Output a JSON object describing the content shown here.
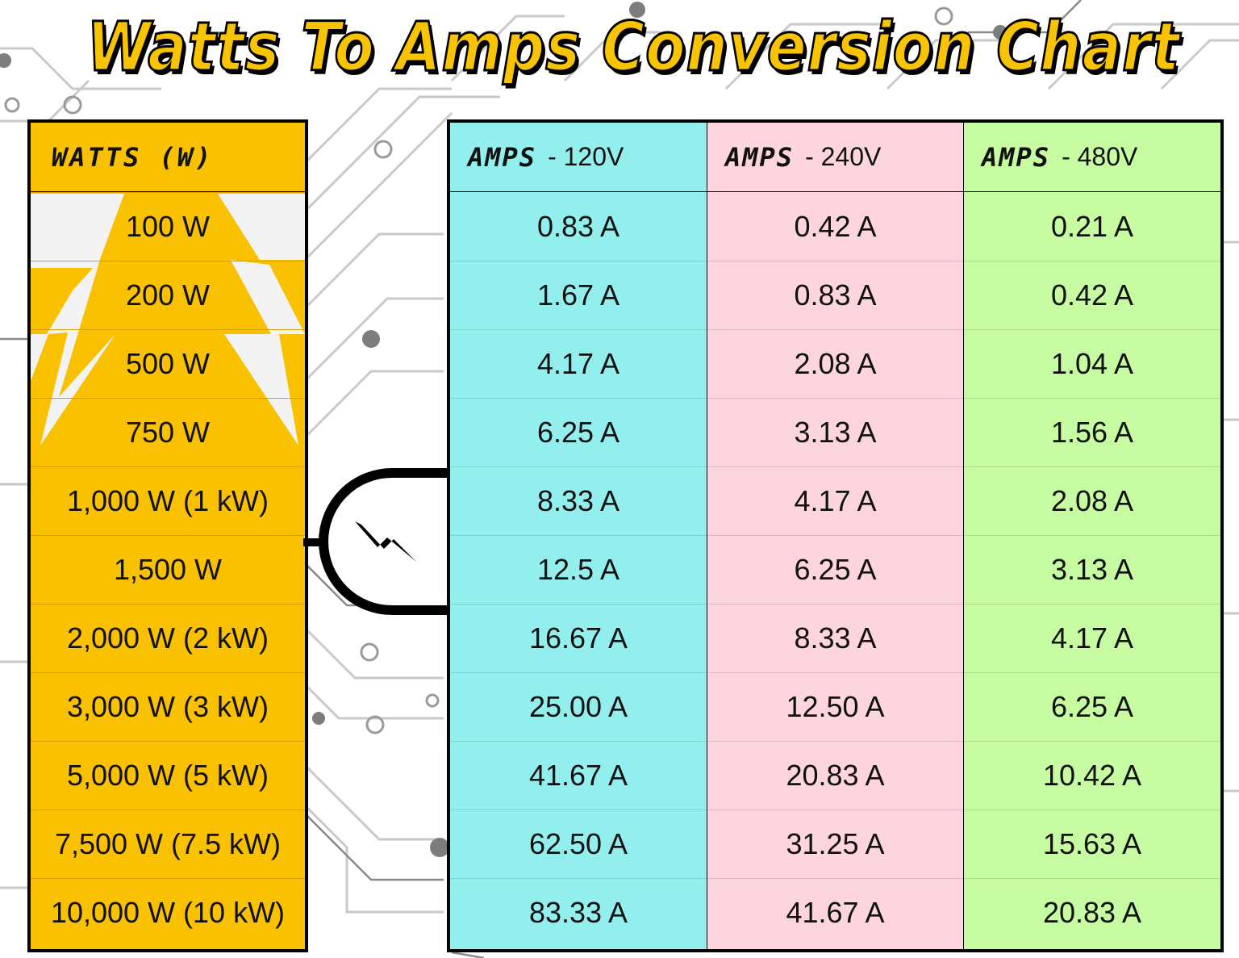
{
  "title": "Watts To Amps Conversion Chart",
  "colors": {
    "accent": "#f9c100",
    "col_120": "#93efee",
    "col_240": "#fdd5df",
    "col_480": "#c7fba2",
    "outline": "#000000"
  },
  "icons": [
    "lightning-bolt-icon",
    "power-plug-icon"
  ],
  "chart_data": {
    "type": "table",
    "title": "Watts To Amps Conversion Chart",
    "columns": [
      {
        "key": "watts",
        "label": "WATTS (W)"
      },
      {
        "key": "a120",
        "label_word": "AMPS",
        "label_volt": "- 120V"
      },
      {
        "key": "a240",
        "label_word": "AMPS",
        "label_volt": "- 240V"
      },
      {
        "key": "a480",
        "label_word": "AMPS",
        "label_volt": "- 480V"
      }
    ],
    "rows": [
      {
        "watts": "100 W",
        "a120": "0.83 A",
        "a240": "0.42 A",
        "a480": "0.21 A"
      },
      {
        "watts": "200 W",
        "a120": "1.67 A",
        "a240": "0.83 A",
        "a480": "0.42 A"
      },
      {
        "watts": "500 W",
        "a120": "4.17 A",
        "a240": "2.08 A",
        "a480": "1.04 A"
      },
      {
        "watts": "750 W",
        "a120": "6.25 A",
        "a240": "3.13 A",
        "a480": "1.56 A"
      },
      {
        "watts": "1,000 W (1 kW)",
        "a120": "8.33 A",
        "a240": "4.17 A",
        "a480": "2.08 A"
      },
      {
        "watts": "1,500 W",
        "a120": "12.5 A",
        "a240": "6.25 A",
        "a480": "3.13 A"
      },
      {
        "watts": "2,000 W (2 kW)",
        "a120": "16.67 A",
        "a240": "8.33 A",
        "a480": "4.17 A"
      },
      {
        "watts": "3,000 W (3 kW)",
        "a120": "25.00 A",
        "a240": "12.50 A",
        "a480": "6.25 A"
      },
      {
        "watts": "5,000 W (5 kW)",
        "a120": "41.67 A",
        "a240": "20.83 A",
        "a480": "10.42 A"
      },
      {
        "watts": "7,500 W (7.5 kW)",
        "a120": "62.50 A",
        "a240": "31.25 A",
        "a480": "15.63 A"
      },
      {
        "watts": "10,000 W (10 kW)",
        "a120": "83.33 A",
        "a240": "41.67 A",
        "a480": "20.83 A"
      }
    ]
  }
}
